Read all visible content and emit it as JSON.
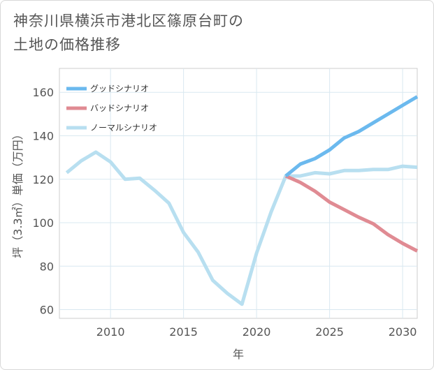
{
  "title": {
    "line1": "神奈川県横浜市港北区篠原台町の",
    "line2": "土地の価格推移"
  },
  "chart_data": {
    "type": "line",
    "title": "神奈川県横浜市港北区篠原台町の土地の価格推移",
    "xlabel": "年",
    "ylabel": "坪（3.3㎡）単価（万円）",
    "xlim": [
      2006.5,
      2031
    ],
    "ylim": [
      56,
      171
    ],
    "xticks": [
      2010,
      2015,
      2020,
      2025,
      2030
    ],
    "yticks": [
      60,
      80,
      100,
      120,
      140,
      160
    ],
    "grid": true,
    "legend_position": "top-left",
    "series": [
      {
        "name": "グッドシナリオ",
        "color": "#6bb9ee",
        "x": [
          2022,
          2023,
          2024,
          2025,
          2026,
          2027,
          2028,
          2029,
          2030,
          2031
        ],
        "y": [
          121.5,
          127,
          129.5,
          133.5,
          139,
          142,
          146,
          150,
          154,
          158
        ]
      },
      {
        "name": "バッドシナリオ",
        "color": "#e08b93",
        "x": [
          2022,
          2023,
          2024,
          2025,
          2026,
          2027,
          2028,
          2029,
          2030,
          2031
        ],
        "y": [
          121.5,
          118.5,
          114.5,
          109.5,
          106,
          102.5,
          99.5,
          94.5,
          90.5,
          87
        ]
      },
      {
        "name": "ノーマルシナリオ",
        "color": "#b8dff0",
        "x": [
          2007,
          2008,
          2009,
          2010,
          2011,
          2012,
          2013,
          2014,
          2015,
          2016,
          2017,
          2018,
          2019,
          2020,
          2021,
          2022,
          2023,
          2024,
          2025,
          2026,
          2027,
          2028,
          2029,
          2030,
          2031
        ],
        "y": [
          123,
          128.5,
          132.5,
          128,
          120,
          120.5,
          115,
          109,
          95.5,
          86.5,
          73.5,
          67.5,
          62.5,
          86,
          105,
          121.5,
          121.5,
          123,
          122.5,
          124,
          124,
          124.5,
          124.5,
          126,
          125.5
        ]
      }
    ]
  }
}
